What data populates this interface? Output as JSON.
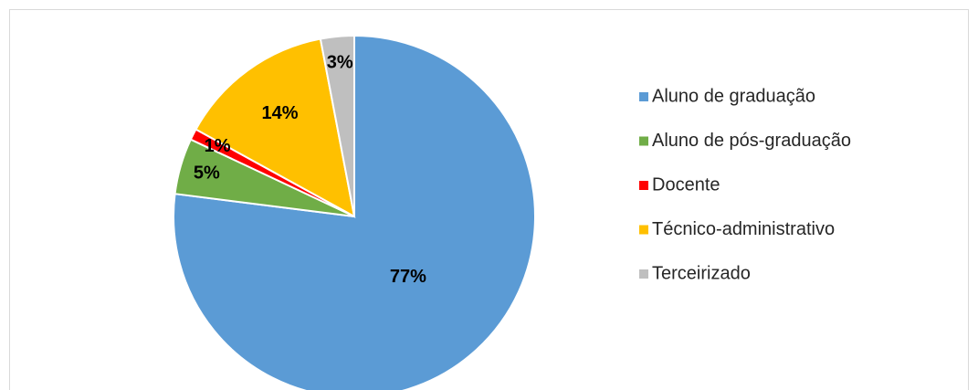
{
  "chart_data": {
    "type": "pie",
    "categories": [
      "Aluno de graduação",
      "Aluno de pós-graduação",
      "Docente",
      "Técnico-administrativo",
      "Terceirizado"
    ],
    "values": [
      77,
      5,
      1,
      14,
      3
    ],
    "value_labels": [
      "77%",
      "5%",
      "1%",
      "14%",
      "3%"
    ],
    "colors": [
      "#5b9bd5",
      "#70ad47",
      "#ff0000",
      "#ffc000",
      "#bfbfbf"
    ],
    "legend": "right"
  }
}
